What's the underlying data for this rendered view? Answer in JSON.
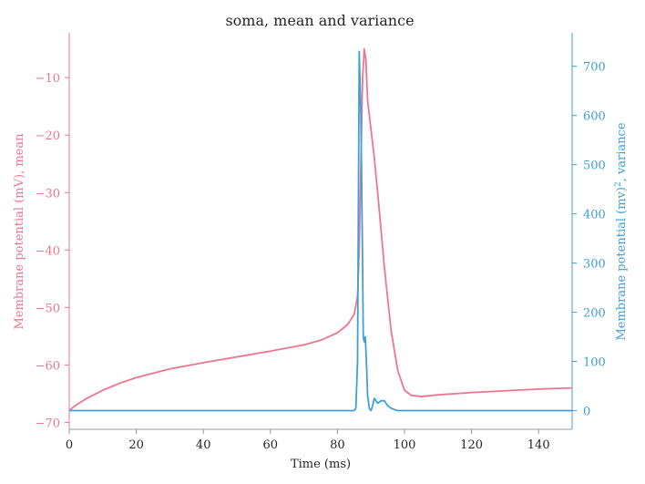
{
  "chart_data": {
    "type": "line",
    "title": "soma, mean and variance",
    "xlabel": "Time (ms)",
    "ylabel_left": "Membrane potential (mV), mean",
    "ylabel_right_prefix": "Membrane potential (mv)",
    "ylabel_right_sup": "2",
    "ylabel_right_suffix": ", variance",
    "xlim": [
      0,
      150
    ],
    "ylim_left": [
      -71.2,
      -2.2
    ],
    "ylim_right": [
      -38,
      768
    ],
    "xticks": [
      0,
      20,
      40,
      60,
      80,
      100,
      120,
      140
    ],
    "yticks_left": [
      -10,
      -20,
      -30,
      -40,
      -50,
      -60,
      -70
    ],
    "yticks_right": [
      700,
      600,
      500,
      400,
      300,
      200,
      100,
      0
    ],
    "grid": false,
    "colors": {
      "mean": "#ee7590",
      "variance": "#3d9fdb",
      "axis": "#999999",
      "text": "#262626"
    },
    "series": [
      {
        "axis": "left",
        "x": [
          0,
          2,
          5,
          10,
          15,
          20,
          30,
          40,
          50,
          60,
          70,
          75,
          80,
          83,
          85,
          86,
          86.5,
          87,
          87.5,
          88,
          88.5,
          89,
          90,
          91,
          92,
          94,
          96,
          98,
          100,
          102,
          105,
          110,
          120,
          130,
          140,
          150
        ],
        "y": [
          -67.9,
          -67.0,
          -65.9,
          -64.4,
          -63.2,
          -62.2,
          -60.7,
          -59.6,
          -58.6,
          -57.6,
          -56.5,
          -55.7,
          -54.4,
          -53.0,
          -51.2,
          -48,
          -40,
          -25,
          -10,
          -5,
          -7,
          -14,
          -19,
          -24,
          -30,
          -43,
          -54,
          -61,
          -64.4,
          -65.3,
          -65.5,
          -65.2,
          -64.8,
          -64.5,
          -64.2,
          -64.0
        ]
      },
      {
        "axis": "right",
        "x": [
          0,
          84,
          85,
          85.5,
          86,
          86.5,
          87,
          87.5,
          87.7,
          88,
          88.3,
          88.7,
          89,
          89.5,
          90,
          90.5,
          91,
          92,
          93,
          94,
          95,
          96,
          97,
          98,
          100,
          150
        ],
        "y": [
          0,
          0,
          0,
          5,
          100,
          730,
          600,
          300,
          150,
          140,
          150,
          90,
          30,
          5,
          0,
          10,
          25,
          15,
          20,
          20,
          10,
          5,
          2,
          0,
          0,
          0
        ]
      }
    ]
  }
}
